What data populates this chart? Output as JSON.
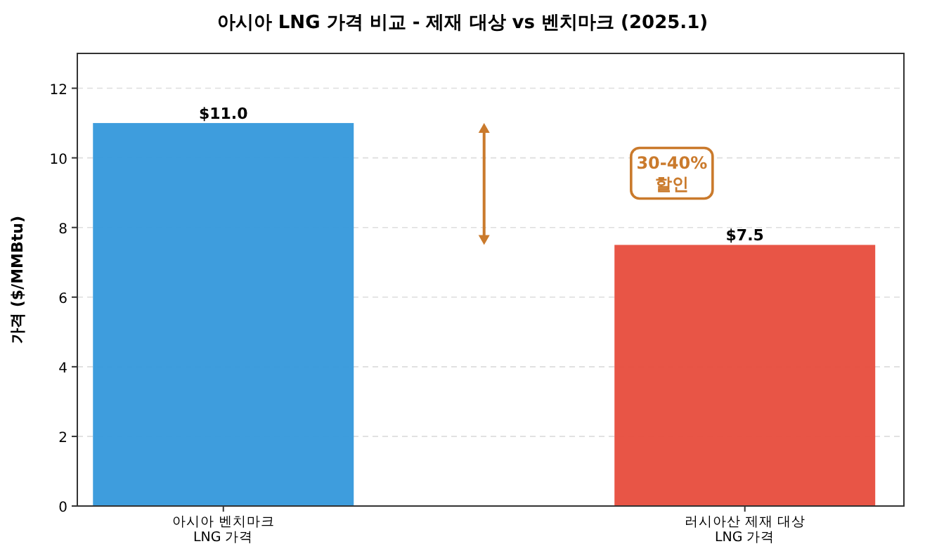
{
  "chart_data": {
    "type": "bar",
    "title": "아시아 LNG 가격 비교 - 제재 대상 vs 벤치마크 (2025.1)",
    "ylabel": "가격 ($/MMBtu)",
    "categories": [
      "아시아 벤치마크\nLNG 가격",
      "러시아산 제재 대상\nLNG 가격"
    ],
    "values": [
      11.0,
      7.5
    ],
    "colors": [
      "#3498db",
      "#e74c3c"
    ],
    "value_labels": [
      "$11.0",
      "$7.5"
    ],
    "ylim": [
      0,
      13
    ],
    "yticks": [
      0,
      2,
      4,
      6,
      8,
      10,
      12
    ],
    "grid": "y",
    "annotations": [
      "30-40%\n할인"
    ]
  }
}
